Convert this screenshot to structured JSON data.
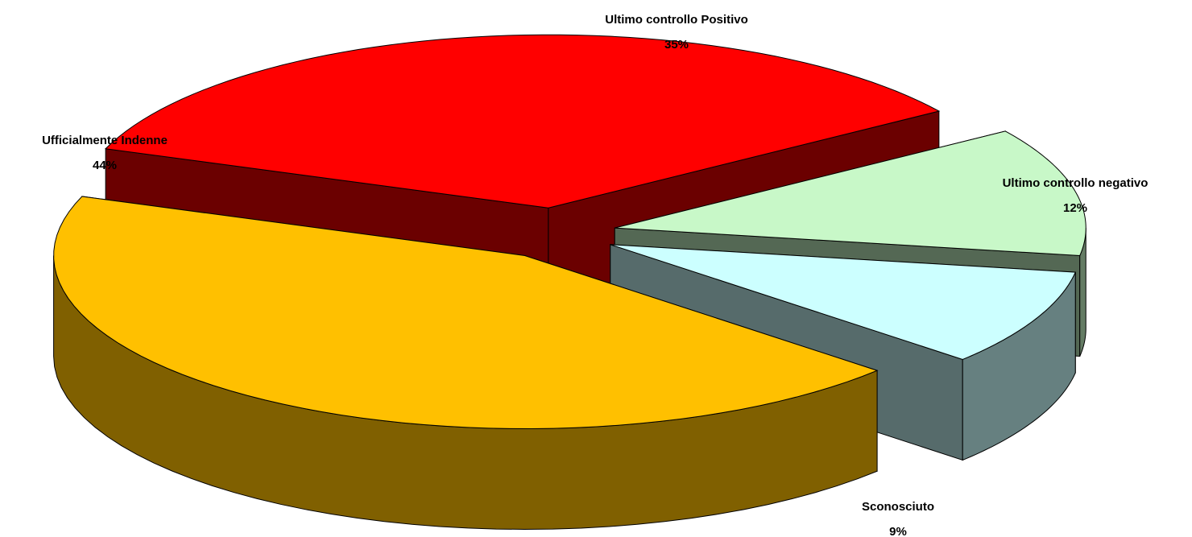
{
  "chart_data": {
    "type": "pie3d",
    "categories": [
      "Ultimo controllo Positivo",
      "Ultimo controllo negativo",
      "Sconosciuto",
      "Ufficialmente Indenne"
    ],
    "values": [
      35,
      12,
      9,
      44
    ],
    "value_labels": [
      "35%",
      "12%",
      "9%",
      "44%"
    ],
    "colors": [
      "#ff0000",
      "#c8f8c8",
      "#ccffff",
      "#ffc000"
    ]
  }
}
